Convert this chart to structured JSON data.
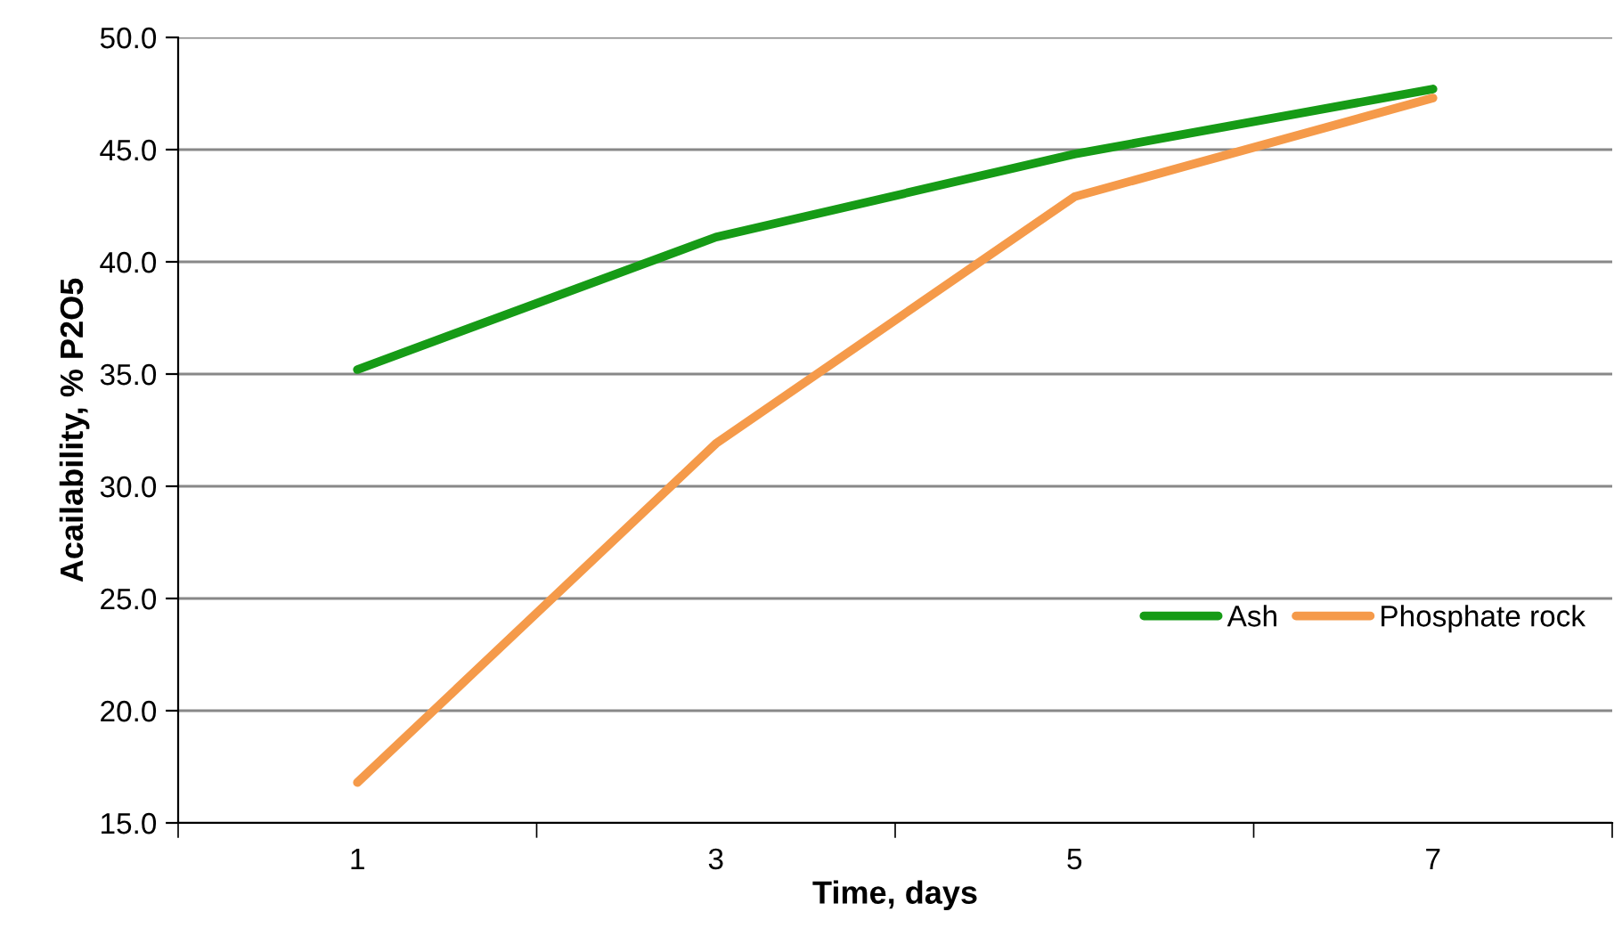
{
  "chart_data": {
    "type": "line",
    "xlabel": "Time, days",
    "ylabel": "Acailability, % P2O5",
    "categories": [
      "1",
      "3",
      "5",
      "7"
    ],
    "series": [
      {
        "name": "Ash",
        "color": "#169b16",
        "values": [
          35.2,
          41.1,
          44.8,
          47.7
        ]
      },
      {
        "name": "Phosphate rock",
        "color": "#f59a4a",
        "values": [
          16.8,
          31.9,
          42.9,
          47.3
        ]
      }
    ],
    "ylim": [
      15,
      50
    ],
    "yticks": [
      {
        "value": 15,
        "label": "15.0"
      },
      {
        "value": 20,
        "label": "20.0"
      },
      {
        "value": 25,
        "label": "25.0"
      },
      {
        "value": 30,
        "label": "30.0"
      },
      {
        "value": 35,
        "label": "35.0"
      },
      {
        "value": 40,
        "label": "40.0"
      },
      {
        "value": 45,
        "label": "45.0"
      },
      {
        "value": 50,
        "label": "50.0"
      }
    ],
    "grid": "y",
    "legend": "right",
    "marker": "none",
    "line_style": "solid"
  }
}
